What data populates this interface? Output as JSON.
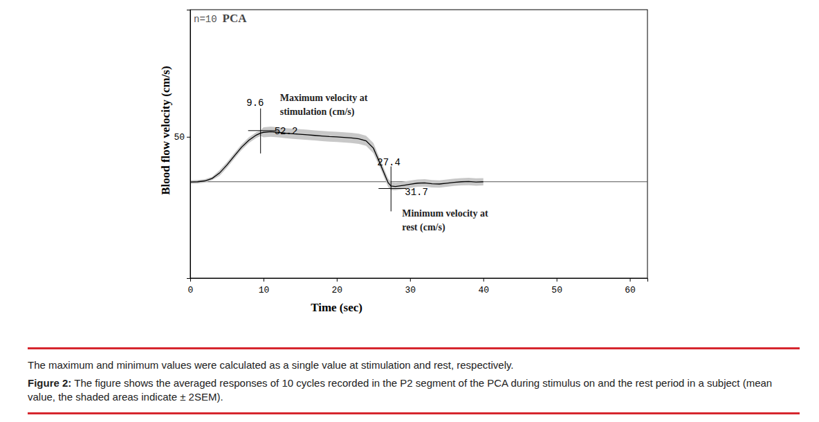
{
  "chart_data": {
    "type": "line",
    "title": "PCA",
    "subtitle": "n=10",
    "x_label": "Time (sec)",
    "y_label": "Blood flow velocity (cm/s)",
    "xlim": [
      0,
      62.4
    ],
    "xticks": [
      0,
      10,
      20,
      30,
      40,
      50,
      60
    ],
    "ylim": [
      0,
      95
    ],
    "yticks": [
      50
    ],
    "reference_line": 34.1,
    "x": [
      0,
      1,
      2,
      3,
      4,
      5,
      6,
      7,
      8,
      9,
      9.6,
      10,
      11,
      12,
      13,
      14,
      15,
      16,
      17,
      18,
      19,
      20,
      21,
      22,
      23,
      24,
      25,
      26,
      27,
      27.4,
      28,
      29,
      30,
      31,
      32,
      33,
      34,
      35,
      36,
      37,
      38,
      39,
      40
    ],
    "series": [
      {
        "color": "#000000",
        "values": [
          34.0,
          34.1,
          34.4,
          35.3,
          37.2,
          40.0,
          43.2,
          46.3,
          48.8,
          50.6,
          51.3,
          51.6,
          51.8,
          51.6,
          51.3,
          51.1,
          50.9,
          50.7,
          50.5,
          50.3,
          50.1,
          50.0,
          49.8,
          49.6,
          49.3,
          48.6,
          46.0,
          40.0,
          33.8,
          32.6,
          32.4,
          32.8,
          33.2,
          33.6,
          33.7,
          33.4,
          33.3,
          33.6,
          33.9,
          34.1,
          34.2,
          34.0,
          34.1
        ],
        "error": [
          0.6,
          0.6,
          0.6,
          0.6,
          1.0,
          1.0,
          1.0,
          1.0,
          1.0,
          1.0,
          1.0,
          1.8,
          1.8,
          1.8,
          1.8,
          1.8,
          1.8,
          1.8,
          1.8,
          1.8,
          1.8,
          1.8,
          1.8,
          1.8,
          1.8,
          1.8,
          1.8,
          1.5,
          1.5,
          1.5,
          1.3,
          1.3,
          1.3,
          1.3,
          1.3,
          1.3,
          1.3,
          1.3,
          1.3,
          1.3,
          1.3,
          1.3,
          1.3
        ]
      }
    ],
    "markers": [
      {
        "x": 9.6,
        "y": 52.2,
        "text": [
          "Maximum velocity at",
          "stimulation (cm/s)"
        ]
      },
      {
        "x": 27.4,
        "y": 31.7,
        "text": [
          "Minimum velocity at",
          "rest (cm/s)"
        ]
      }
    ]
  },
  "caption": {
    "note": "The maximum and minimum values were calculated as a single value at stimulation and rest, respectively.",
    "figure_label": "Figure 2:",
    "figure_text": "The figure shows the averaged responses of 10 cycles recorded in the P2 segment of the PCA during stimulus on and the rest period in a subject (mean value, the shaded areas indicate ± 2SEM)."
  }
}
